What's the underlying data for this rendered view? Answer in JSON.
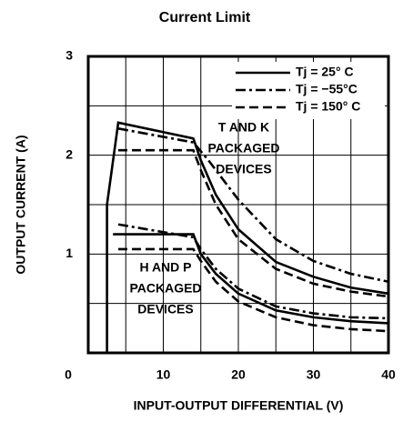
{
  "chart_data": {
    "type": "line",
    "title": "Current Limit",
    "xlabel": "INPUT-OUTPUT DIFFERENTIAL (V)",
    "ylabel": "OUTPUT CURRENT (A)",
    "xlim": [
      0,
      40
    ],
    "ylim": [
      0,
      3
    ],
    "xticks": [
      0,
      10,
      20,
      30,
      40
    ],
    "yticks": [
      1,
      2,
      3
    ],
    "xminorticks": [
      5,
      15,
      25,
      35
    ],
    "yminorticks": [
      0.5,
      1.5,
      2.5
    ],
    "grid": true,
    "legend": "upper right",
    "annotations": [
      [
        "T AND K",
        "PACKAGED",
        "DEVICES"
      ],
      [
        "H AND P",
        "PACKAGED",
        "DEVICES"
      ]
    ],
    "series": [
      {
        "name": "Tj = 25° C",
        "color": "#000",
        "style": "solid",
        "x": [
          2.5,
          2.5,
          4,
          14,
          15,
          17,
          20,
          25,
          30,
          35,
          40
        ],
        "values": [
          0,
          1.5,
          2.33,
          2.17,
          1.95,
          1.6,
          1.25,
          0.92,
          0.77,
          0.66,
          0.6
        ]
      },
      {
        "name": "Tj = −55°C",
        "color": "#000",
        "style": "dashdot",
        "x": [
          4,
          14,
          16,
          20,
          25,
          30,
          35,
          40
        ],
        "values": [
          2.27,
          2.13,
          1.95,
          1.55,
          1.15,
          0.93,
          0.8,
          0.72
        ]
      },
      {
        "name": "Tj = 150° C",
        "color": "#000",
        "style": "dashed",
        "x": [
          4,
          14,
          15,
          17,
          20,
          25,
          30,
          35,
          40
        ],
        "values": [
          2.05,
          2.05,
          1.85,
          1.5,
          1.15,
          0.85,
          0.7,
          0.62,
          0.57
        ]
      },
      {
        "color": "#000",
        "style": "solid",
        "x": [
          3.3,
          4,
          14,
          15,
          17,
          20,
          25,
          30,
          35,
          40
        ],
        "values": [
          1.2,
          1.2,
          1.2,
          1.0,
          0.8,
          0.6,
          0.43,
          0.36,
          0.32,
          0.3
        ]
      },
      {
        "color": "#000",
        "style": "dashdot",
        "x": [
          4,
          14,
          15,
          17,
          20,
          25,
          30,
          35,
          40
        ],
        "values": [
          1.3,
          1.17,
          1.05,
          0.85,
          0.65,
          0.47,
          0.4,
          0.36,
          0.35
        ]
      },
      {
        "color": "#000",
        "style": "dashed",
        "x": [
          4,
          14,
          15,
          17,
          20,
          25,
          30,
          35,
          40
        ],
        "values": [
          1.05,
          1.05,
          0.93,
          0.72,
          0.52,
          0.36,
          0.28,
          0.24,
          0.22
        ]
      }
    ]
  }
}
